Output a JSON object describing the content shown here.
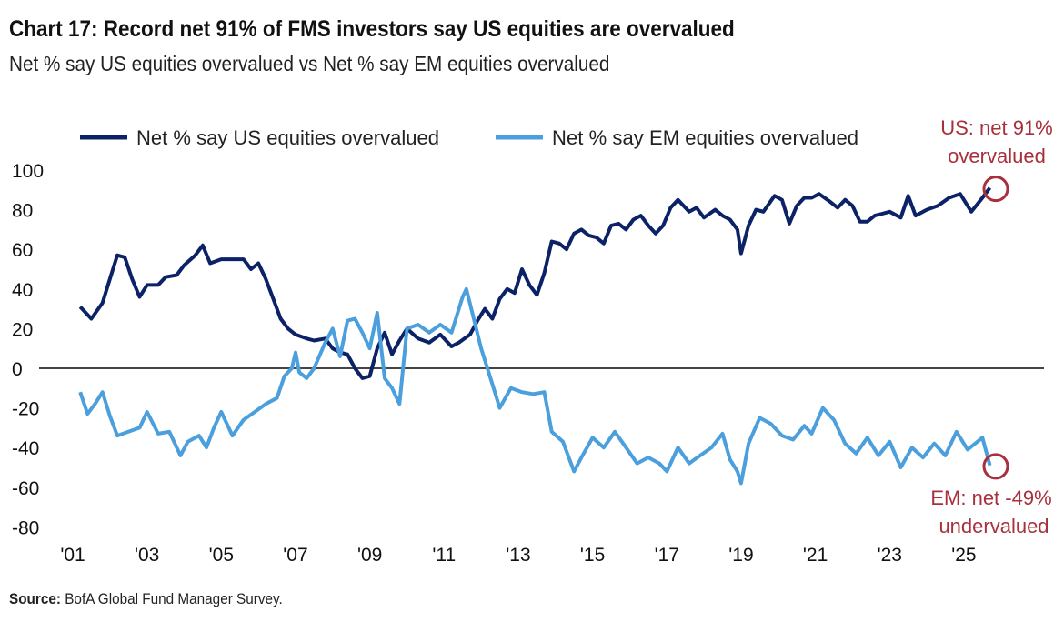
{
  "chart_data": {
    "type": "line",
    "title": "Chart 17: Record net 91% of FMS investors say US equities are overvalued",
    "subtitle": "Net % say US equities overvalued vs Net % say EM equities overvalued",
    "source_label": "Source:",
    "source": "BofA Global Fund Manager Survey.",
    "xlabel": "",
    "ylabel": "",
    "xlim": [
      2001,
      2027.2
    ],
    "ylim": [
      -80,
      100
    ],
    "yticks": [
      100,
      80,
      60,
      40,
      20,
      0,
      -20,
      -40,
      -60,
      -80
    ],
    "xticks": [
      {
        "year": 2001,
        "label": "'01"
      },
      {
        "year": 2003,
        "label": "'03"
      },
      {
        "year": 2005,
        "label": "'05"
      },
      {
        "year": 2007,
        "label": "'07"
      },
      {
        "year": 2009,
        "label": "'09"
      },
      {
        "year": 2011,
        "label": "'11"
      },
      {
        "year": 2013,
        "label": "'13"
      },
      {
        "year": 2015,
        "label": "'15"
      },
      {
        "year": 2017,
        "label": "'17"
      },
      {
        "year": 2019,
        "label": "'19"
      },
      {
        "year": 2021,
        "label": "'21"
      },
      {
        "year": 2023,
        "label": "'23"
      },
      {
        "year": 2025,
        "label": "'25"
      }
    ],
    "grid": false,
    "legend_position": "top",
    "series": [
      {
        "name": "Net % say US equities overvalued",
        "color": "#0c2266",
        "x": [
          2001.2,
          2001.5,
          2001.8,
          2002.0,
          2002.2,
          2002.4,
          2002.6,
          2002.8,
          2003.0,
          2003.3,
          2003.5,
          2003.8,
          2004.0,
          2004.3,
          2004.5,
          2004.7,
          2005.0,
          2005.3,
          2005.6,
          2005.8,
          2006.0,
          2006.2,
          2006.4,
          2006.6,
          2006.8,
          2007.0,
          2007.3,
          2007.5,
          2007.8,
          2008.0,
          2008.2,
          2008.4,
          2008.6,
          2008.8,
          2009.0,
          2009.2,
          2009.4,
          2009.6,
          2009.8,
          2010.0,
          2010.3,
          2010.6,
          2010.9,
          2011.2,
          2011.4,
          2011.7,
          2011.9,
          2012.1,
          2012.3,
          2012.5,
          2012.7,
          2012.9,
          2013.1,
          2013.3,
          2013.5,
          2013.7,
          2013.9,
          2014.1,
          2014.3,
          2014.5,
          2014.7,
          2014.9,
          2015.1,
          2015.3,
          2015.5,
          2015.7,
          2015.9,
          2016.1,
          2016.3,
          2016.5,
          2016.7,
          2016.9,
          2017.1,
          2017.3,
          2017.6,
          2017.8,
          2018.0,
          2018.3,
          2018.5,
          2018.7,
          2018.9,
          2019.0,
          2019.2,
          2019.4,
          2019.6,
          2019.9,
          2020.1,
          2020.3,
          2020.5,
          2020.7,
          2020.9,
          2021.1,
          2021.4,
          2021.6,
          2021.8,
          2022.0,
          2022.2,
          2022.4,
          2022.6,
          2022.8,
          2023.0,
          2023.3,
          2023.5,
          2023.7,
          2024.0,
          2024.3,
          2024.6,
          2024.9,
          2025.2,
          2025.5,
          2025.7
        ],
        "values": [
          31,
          25,
          33,
          45,
          57,
          56,
          45,
          36,
          42,
          42,
          46,
          47,
          52,
          57,
          62,
          53,
          55,
          55,
          55,
          50,
          53,
          45,
          35,
          25,
          20,
          17,
          15,
          14,
          15,
          10,
          8,
          7,
          0,
          -5,
          -4,
          10,
          18,
          7,
          14,
          20,
          15,
          13,
          17,
          11,
          13,
          17,
          24,
          30,
          25,
          35,
          40,
          38,
          50,
          42,
          37,
          48,
          64,
          63,
          60,
          68,
          70,
          67,
          66,
          63,
          72,
          73,
          70,
          75,
          77,
          72,
          68,
          72,
          81,
          85,
          79,
          81,
          76,
          80,
          77,
          75,
          70,
          58,
          72,
          80,
          79,
          87,
          85,
          73,
          82,
          86,
          86,
          88,
          84,
          81,
          85,
          82,
          74,
          74,
          77,
          78,
          79,
          76,
          87,
          77,
          80,
          82,
          86,
          88,
          79,
          86,
          91
        ]
      },
      {
        "name": "Net % say EM equities overvalued",
        "color": "#4a9fdc",
        "x": [
          2001.2,
          2001.4,
          2001.6,
          2001.8,
          2002.0,
          2002.2,
          2002.5,
          2002.8,
          2003.0,
          2003.3,
          2003.6,
          2003.9,
          2004.1,
          2004.4,
          2004.6,
          2004.8,
          2005.0,
          2005.3,
          2005.6,
          2005.9,
          2006.2,
          2006.5,
          2006.7,
          2006.9,
          2007.0,
          2007.1,
          2007.3,
          2007.5,
          2007.8,
          2008.0,
          2008.2,
          2008.4,
          2008.6,
          2008.8,
          2009.0,
          2009.2,
          2009.4,
          2009.6,
          2009.8,
          2010.0,
          2010.3,
          2010.6,
          2010.9,
          2011.2,
          2011.5,
          2011.6,
          2011.8,
          2012.0,
          2012.3,
          2012.5,
          2012.8,
          2013.1,
          2013.4,
          2013.7,
          2013.9,
          2014.2,
          2014.5,
          2014.7,
          2015.0,
          2015.3,
          2015.6,
          2015.9,
          2016.2,
          2016.5,
          2016.8,
          2017.0,
          2017.3,
          2017.6,
          2017.9,
          2018.2,
          2018.5,
          2018.7,
          2018.9,
          2019.0,
          2019.2,
          2019.5,
          2019.8,
          2020.1,
          2020.4,
          2020.7,
          2020.9,
          2021.2,
          2021.5,
          2021.8,
          2022.1,
          2022.4,
          2022.7,
          2023.0,
          2023.3,
          2023.6,
          2023.9,
          2024.2,
          2024.5,
          2024.8,
          2025.1,
          2025.5,
          2025.7
        ],
        "values": [
          -12,
          -23,
          -18,
          -12,
          -24,
          -34,
          -32,
          -30,
          -22,
          -33,
          -32,
          -44,
          -37,
          -34,
          -40,
          -30,
          -22,
          -34,
          -26,
          -22,
          -18,
          -15,
          -4,
          0,
          8,
          -2,
          -5,
          0,
          13,
          20,
          6,
          24,
          25,
          18,
          10,
          28,
          -5,
          -10,
          -18,
          20,
          22,
          18,
          22,
          18,
          36,
          40,
          25,
          10,
          -8,
          -20,
          -10,
          -12,
          -13,
          -12,
          -32,
          -37,
          -52,
          -45,
          -35,
          -40,
          -32,
          -40,
          -48,
          -45,
          -48,
          -52,
          -40,
          -48,
          -44,
          -40,
          -33,
          -46,
          -52,
          -58,
          -38,
          -25,
          -28,
          -34,
          -36,
          -29,
          -33,
          -20,
          -26,
          -38,
          -43,
          -35,
          -44,
          -37,
          -50,
          -40,
          -45,
          -38,
          -44,
          -32,
          -41,
          -35,
          -49
        ]
      }
    ],
    "annotations": [
      {
        "line1": "US: net 91%",
        "line2": "overvalued",
        "year": 2025.7,
        "value": 91
      },
      {
        "line1": "EM: net -49%",
        "line2": "undervalued",
        "year": 2025.7,
        "value": -49
      }
    ],
    "annotation_color": "#a8303c"
  }
}
